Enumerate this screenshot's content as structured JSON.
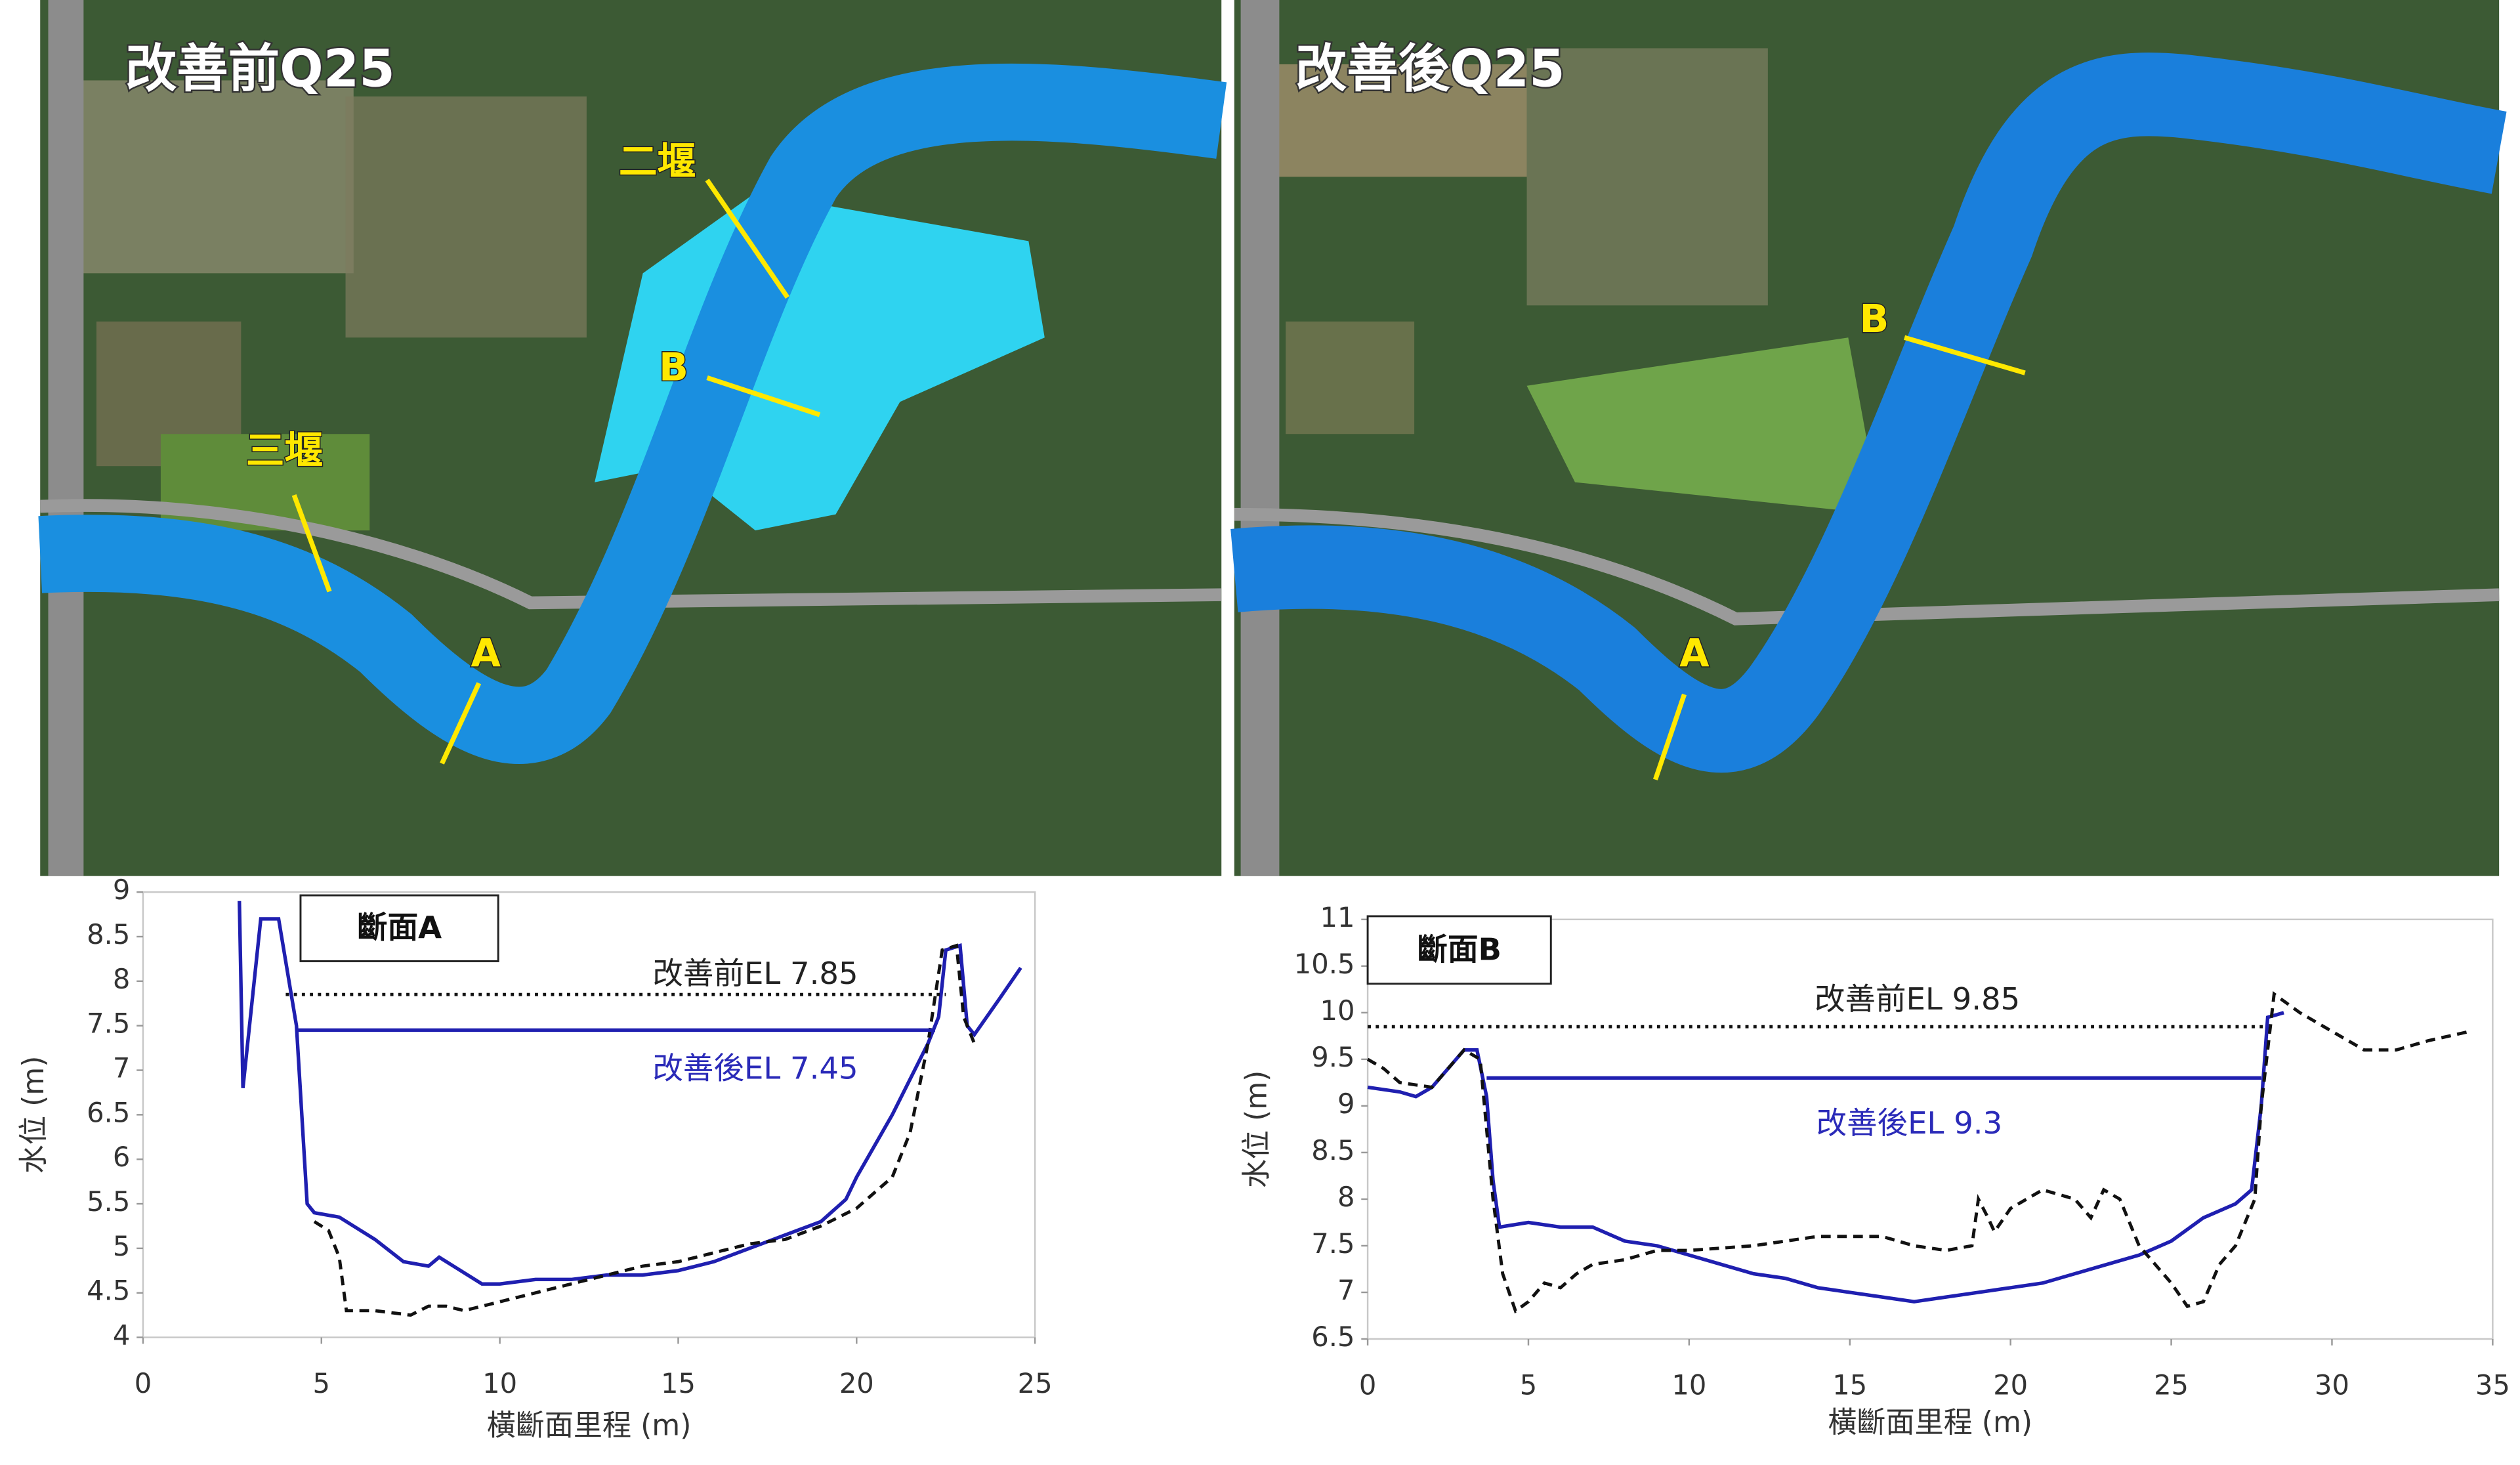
{
  "panels": [
    {
      "title": "改善前Q25",
      "labels": [
        "二堰",
        "B",
        "三堰",
        "A"
      ]
    },
    {
      "title": "改善後Q25",
      "labels": [
        "B",
        "A"
      ]
    }
  ],
  "chart_data": [
    {
      "type": "line",
      "box_label": "斷面A",
      "xlabel": "橫斷面里程 (m)",
      "ylabel": "水位 (m)",
      "xlim": [
        0,
        25
      ],
      "xticks": [
        0,
        5,
        10,
        15,
        20,
        25
      ],
      "ylim": [
        4,
        9
      ],
      "yticks": [
        4,
        4.5,
        5,
        5.5,
        6,
        6.5,
        7,
        7.5,
        8,
        8.5,
        9
      ],
      "annotations": [
        {
          "text": "改善前EL 7.85",
          "color": "#222222"
        },
        {
          "text": "改善後EL 7.45",
          "color": "#2a2ab8"
        }
      ],
      "series": [
        {
          "color": "#1f1fb0",
          "dash": "solid",
          "x": [
            2.7,
            2.8,
            3.3,
            3.8,
            4.3,
            4.6,
            4.8,
            5.5,
            6.5,
            7.3,
            8,
            8.3,
            8.7,
            9.5,
            10,
            11,
            12,
            13,
            14,
            15,
            16,
            17,
            18,
            19,
            19.7,
            20,
            21,
            22,
            22.3,
            22.5,
            22.9,
            23.1,
            23.3,
            24,
            24.6
          ],
          "values": [
            8.9,
            6.8,
            8.7,
            8.7,
            7.5,
            5.5,
            5.4,
            5.35,
            5.1,
            4.85,
            4.8,
            4.9,
            4.8,
            4.6,
            4.6,
            4.65,
            4.65,
            4.7,
            4.7,
            4.75,
            4.85,
            5,
            5.15,
            5.3,
            5.55,
            5.8,
            6.5,
            7.3,
            7.6,
            8.35,
            8.4,
            7.5,
            7.4,
            7.8,
            8.15
          ]
        },
        {
          "color": "#111111",
          "dash": "dashed",
          "x": [
            4.8,
            5.2,
            5.5,
            5.7,
            6.5,
            7.5,
            8,
            8.5,
            9,
            10,
            11,
            12,
            13,
            14,
            15,
            16,
            17,
            18,
            19,
            20,
            21,
            21.5,
            22,
            22.4,
            22.8,
            23,
            23.3
          ],
          "values": [
            5.3,
            5.2,
            4.9,
            4.3,
            4.3,
            4.25,
            4.35,
            4.35,
            4.3,
            4.4,
            4.5,
            4.6,
            4.7,
            4.8,
            4.85,
            4.95,
            5.05,
            5.1,
            5.25,
            5.45,
            5.8,
            6.3,
            7.3,
            8.35,
            8.4,
            7.6,
            7.3
          ]
        },
        {
          "color": "#111111",
          "dash": "dotted",
          "x": [
            4,
            22.5
          ],
          "values": [
            7.85,
            7.85
          ]
        },
        {
          "color": "#1f1fb0",
          "dash": "solid",
          "x": [
            4.3,
            22.2
          ],
          "values": [
            7.45,
            7.45
          ]
        }
      ]
    },
    {
      "type": "line",
      "box_label": "斷面B",
      "xlabel": "橫斷面里程 (m)",
      "ylabel": "水位 (m)",
      "xlim": [
        0,
        35
      ],
      "xticks": [
        0,
        5,
        10,
        15,
        20,
        25,
        30,
        35
      ],
      "ylim": [
        6.5,
        11
      ],
      "yticks": [
        6.5,
        7,
        7.5,
        8,
        8.5,
        9,
        9.5,
        10,
        10.5,
        11
      ],
      "annotations": [
        {
          "text": "改善前EL 9.85",
          "color": "#222222"
        },
        {
          "text": "改善後EL 9.3",
          "color": "#2a2ab8"
        }
      ],
      "series": [
        {
          "color": "#1f1fb0",
          "dash": "solid",
          "x": [
            0,
            1,
            1.5,
            2,
            2.5,
            3,
            3.4,
            3.7,
            3.9,
            4.1,
            5,
            6,
            7,
            8,
            9,
            10,
            11,
            12,
            13,
            14,
            15,
            16,
            17,
            18,
            19,
            20,
            21,
            22,
            23,
            24,
            25,
            26,
            27,
            27.5,
            27.8,
            28,
            28.5
          ],
          "values": [
            9.2,
            9.15,
            9.1,
            9.2,
            9.4,
            9.6,
            9.6,
            9.1,
            8.2,
            7.7,
            7.75,
            7.7,
            7.7,
            7.55,
            7.5,
            7.4,
            7.3,
            7.2,
            7.15,
            7.05,
            7,
            6.95,
            6.9,
            6.95,
            7,
            7.05,
            7.1,
            7.2,
            7.3,
            7.4,
            7.55,
            7.8,
            7.95,
            8.1,
            9,
            9.95,
            10
          ]
        },
        {
          "color": "#111111",
          "dash": "dashed",
          "x": [
            0,
            0.5,
            1,
            2,
            2.5,
            3,
            3.5,
            3.9,
            4.2,
            4.6,
            5,
            5.5,
            6,
            6.5,
            7,
            8,
            9,
            10,
            12,
            14,
            16,
            17,
            18,
            18.8,
            19,
            19.3,
            19.5,
            20,
            21,
            22,
            22.5,
            22.9,
            23.4,
            24,
            25,
            25.5,
            26,
            26.5,
            27,
            27.6,
            27.8,
            28.2,
            29,
            30,
            31,
            32,
            33,
            34.3
          ],
          "values": [
            9.5,
            9.4,
            9.25,
            9.2,
            9.4,
            9.6,
            9.5,
            8,
            7.2,
            6.8,
            6.9,
            7.1,
            7.05,
            7.2,
            7.3,
            7.35,
            7.45,
            7.45,
            7.5,
            7.6,
            7.6,
            7.5,
            7.45,
            7.5,
            8,
            7.8,
            7.65,
            7.9,
            8.1,
            8,
            7.8,
            8.1,
            8,
            7.5,
            7.1,
            6.85,
            6.9,
            7.3,
            7.5,
            8,
            9,
            10.2,
            10,
            9.8,
            9.6,
            9.6,
            9.7,
            9.8
          ]
        },
        {
          "color": "#111111",
          "dash": "dotted",
          "x": [
            0,
            28
          ],
          "values": [
            9.85,
            9.85
          ]
        },
        {
          "color": "#1f1fb0",
          "dash": "solid",
          "x": [
            3.7,
            27.8
          ],
          "values": [
            9.3,
            9.3
          ]
        }
      ]
    }
  ]
}
